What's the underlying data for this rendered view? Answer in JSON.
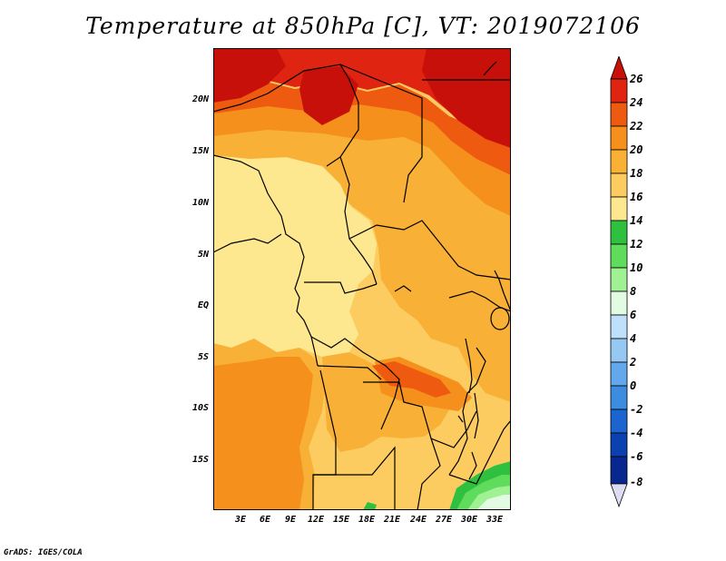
{
  "title": "Temperature at 850hPa [C], VT: 2019072106",
  "credit": "GrADS: IGES/COLA",
  "lat_labels": [
    "20N",
    "15N",
    "10N",
    "5N",
    "EQ",
    "5S",
    "10S",
    "15S"
  ],
  "lon_labels": [
    "3E",
    "6E",
    "9E",
    "12E",
    "15E",
    "18E",
    "21E",
    "24E",
    "27E",
    "30E",
    "33E"
  ],
  "colorbar": {
    "labels": [
      "26",
      "24",
      "22",
      "20",
      "18",
      "16",
      "14",
      "12",
      "10",
      "8",
      "6",
      "4",
      "2",
      "0",
      "-2",
      "-4",
      "-6",
      "-8"
    ],
    "colors": {
      "above_26": "#c8100a",
      "24_26": "#e02412",
      "22_24": "#ee5a10",
      "20_22": "#f6901c",
      "18_20": "#f8b036",
      "16_18": "#fccc60",
      "14_16": "#fde890",
      "12_14": "#30c040",
      "10_12": "#60dc5c",
      "8_10": "#a0f094",
      "6_8": "#e2fbe2",
      "4_6": "#bfe0fa",
      "2_4": "#96c8f4",
      "0_2": "#64a8ec",
      "-2_0": "#3c8ce0",
      "-4_-2": "#1c64d0",
      "-6_-4": "#0a40b0",
      "-8_-6": "#082890",
      "below_-8": "#dcdcf2"
    }
  }
}
